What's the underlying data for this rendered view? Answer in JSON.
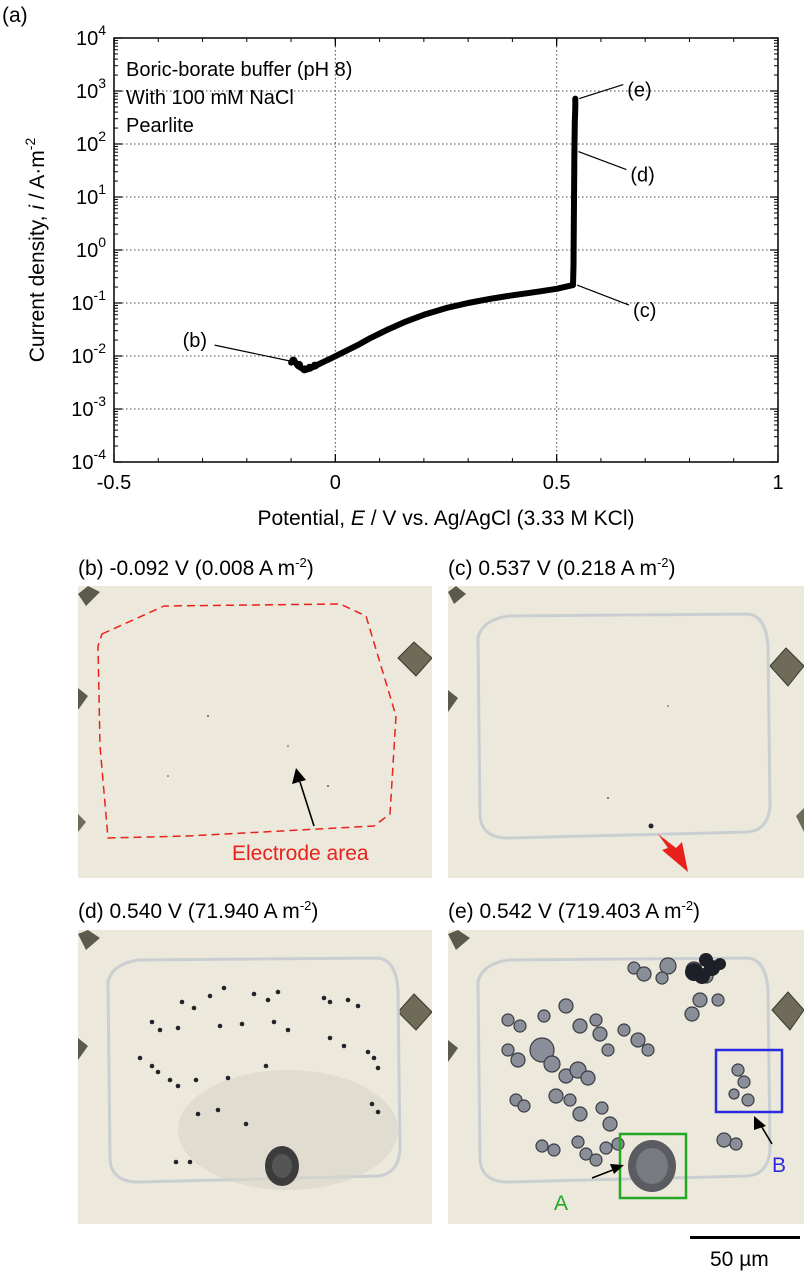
{
  "figure": {
    "panel_label": "(a)"
  },
  "chart_data": {
    "type": "line",
    "xlabel_prefix": "Potential, ",
    "xlabel_var": "E",
    "xlabel_suffix": " / V vs. Ag/AgCl (3.33 M KCl)",
    "ylabel_prefix": "Current density, ",
    "ylabel_var": "i",
    "ylabel_suffix": " / A·m",
    "ylabel_exp": "-2",
    "xlim": [
      -0.5,
      1.0
    ],
    "ylog_range": [
      -4,
      4
    ],
    "yscale": "log",
    "grid": true,
    "xticks": [
      {
        "v": -0.5,
        "label": "-0.5"
      },
      {
        "v": 0,
        "label": "0"
      },
      {
        "v": 0.5,
        "label": "0.5"
      },
      {
        "v": 1.0,
        "label": "1"
      }
    ],
    "yticks": [
      {
        "e": 4,
        "base": "10",
        "exp": "4"
      },
      {
        "e": 3,
        "base": "10",
        "exp": "3"
      },
      {
        "e": 2,
        "base": "10",
        "exp": "2"
      },
      {
        "e": 1,
        "base": "10",
        "exp": "1"
      },
      {
        "e": 0,
        "base": "10",
        "exp": "0"
      },
      {
        "e": -1,
        "base": "10",
        "exp": "-1"
      },
      {
        "e": -2,
        "base": "10",
        "exp": "-2"
      },
      {
        "e": -3,
        "base": "10",
        "exp": "-3"
      },
      {
        "e": -4,
        "base": "10",
        "exp": "-4"
      }
    ],
    "legend_lines": [
      "Boric-borate buffer (pH 8)",
      "With 100 mM NaCl",
      "Pearlite"
    ],
    "series": [
      {
        "x": [
          -0.1,
          -0.092,
          -0.085,
          -0.075,
          -0.065,
          -0.05,
          -0.03,
          -0.01,
          0.02,
          0.05,
          0.08,
          0.12,
          0.16,
          0.2,
          0.25,
          0.3,
          0.35,
          0.4,
          0.45,
          0.5,
          0.537,
          0.538,
          0.539,
          0.54,
          0.541,
          0.542,
          0.542
        ],
        "y": [
          0.0075,
          0.008,
          0.0065,
          0.0058,
          0.0055,
          0.0062,
          0.0075,
          0.009,
          0.012,
          0.016,
          0.022,
          0.032,
          0.045,
          0.06,
          0.08,
          0.1,
          0.12,
          0.14,
          0.16,
          0.185,
          0.218,
          0.5,
          5.0,
          71.94,
          250,
          500,
          719.403
        ]
      }
    ],
    "annotations": [
      {
        "label": "(b)",
        "x": -0.092,
        "y": 0.008
      },
      {
        "label": "(c)",
        "x": 0.537,
        "y": 0.218
      },
      {
        "label": "(d)",
        "x": 0.54,
        "y": 71.94
      },
      {
        "label": "(e)",
        "x": 0.542,
        "y": 719.403
      }
    ]
  },
  "micrographs": {
    "b": {
      "prefix": "(b) -0.092 V (0.008 A m",
      "exp": "-2",
      "suffix": ")",
      "electrode_label": "Electrode area"
    },
    "c": {
      "prefix": "(c) 0.537 V (0.218 A m",
      "exp": "-2",
      "suffix": ")"
    },
    "d": {
      "prefix": "(d) 0.540 V (71.940 A m",
      "exp": "-2",
      "suffix": ")"
    },
    "e": {
      "prefix": "(e) 0.542 V (719.403 A m",
      "exp": "-2",
      "suffix": ")",
      "box_a_label": "A",
      "box_b_label": "B"
    },
    "scale_bar_label": "50 µm",
    "colors": {
      "red": "#e8221a",
      "green": "#22a822",
      "blue": "#2a2ae0",
      "bg": "#ece9dc"
    }
  }
}
